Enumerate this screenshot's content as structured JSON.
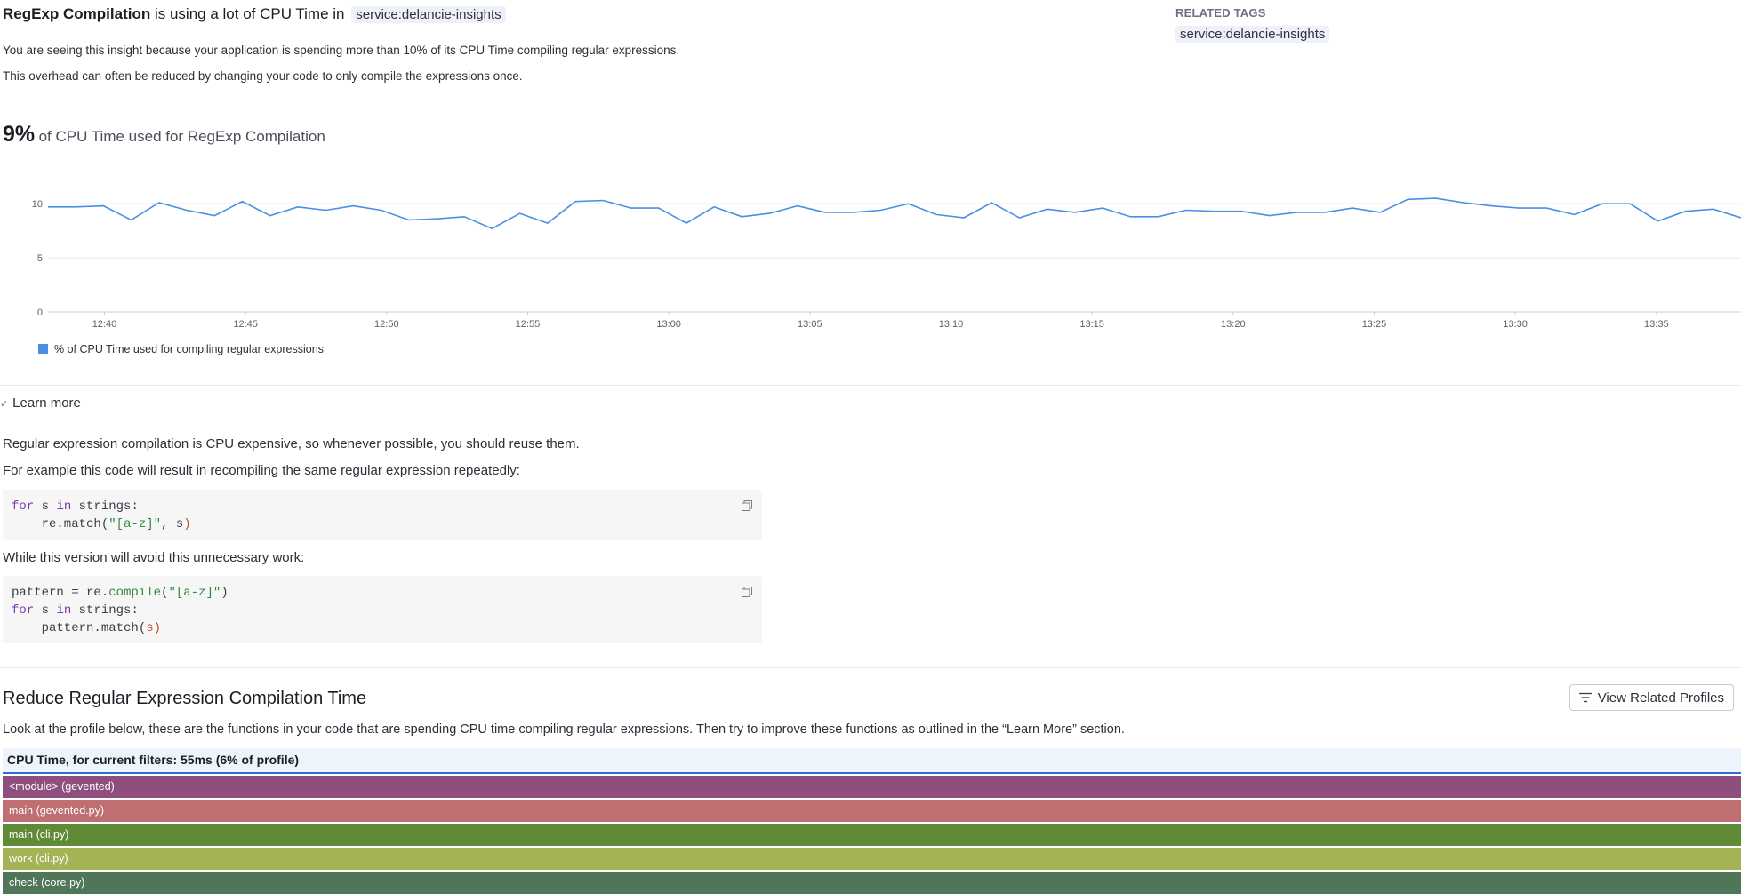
{
  "insight": {
    "title_bold": "RegExp Compilation",
    "title_rest": "is using a lot of CPU Time in",
    "service_tag": "service:delancie-insights",
    "desc_line1": "You are seeing this insight because your application is spending more than 10% of its CPU Time compiling regular expressions.",
    "desc_line2": "This overhead can often be reduced by changing your code to only compile the expressions once."
  },
  "related_tags": {
    "heading": "RELATED TAGS",
    "tag": "service:delancie-insights"
  },
  "metric": {
    "value": "9%",
    "label": "of CPU Time used for RegExp Compilation"
  },
  "chart_data": {
    "type": "line",
    "title": "",
    "xlabel": "",
    "ylabel": "",
    "ylim": [
      0,
      11
    ],
    "yticks": [
      "0",
      "5",
      "10"
    ],
    "xticks": [
      "12:40",
      "12:45",
      "12:50",
      "12:55",
      "13:00",
      "13:05",
      "13:10",
      "13:15",
      "13:20",
      "13:25",
      "13:30",
      "13:35"
    ],
    "x_start": "12:38",
    "x_end": "13:38",
    "grid": true,
    "legend_position": "bottom-left",
    "series": [
      {
        "name": "% of CPU Time used for compiling regular expressions",
        "color": "#4a90e2",
        "values": [
          9.7,
          9.7,
          9.8,
          8.5,
          10.1,
          9.4,
          8.9,
          10.2,
          8.9,
          9.7,
          9.4,
          9.8,
          9.4,
          8.5,
          8.6,
          8.8,
          7.7,
          9.1,
          8.2,
          10.2,
          10.3,
          9.6,
          9.6,
          8.2,
          9.7,
          8.8,
          9.1,
          9.8,
          9.2,
          9.2,
          9.4,
          10.0,
          9.0,
          8.7,
          10.1,
          8.7,
          9.5,
          9.2,
          9.6,
          8.8,
          8.8,
          9.4,
          9.3,
          9.3,
          8.9,
          9.2,
          9.2,
          9.6,
          9.2,
          10.4,
          10.5,
          10.1,
          9.8,
          9.6,
          9.6,
          9.0,
          10.0,
          10.0,
          8.4,
          9.3,
          9.5,
          8.7
        ]
      }
    ]
  },
  "learn_more": {
    "toggle_label": "Learn more",
    "para1": "Regular expression compilation is CPU expensive, so whenever possible, you should reuse them.",
    "para2": "For example this code will result in recompiling the same regular expression repeatedly:",
    "para3": "While this version will avoid this unnecessary work:",
    "code1": {
      "l1_kw": "for",
      "l1_a": " s ",
      "l1_kw2": "in",
      "l1_b": " strings:",
      "l2_a": "    re.match(",
      "l2_str": "\"[a-z]\"",
      "l2_b": ", s",
      "l2_par": ")"
    },
    "code2": {
      "l1_a": "pattern = re.",
      "l1_fn": "compile",
      "l1_b": "(",
      "l1_str": "\"[a-z]\"",
      "l1_par": ")",
      "l2_kw": "for",
      "l2_a": " s ",
      "l2_kw2": "in",
      "l2_b": " strings:",
      "l3_a": "    pattern.match(",
      "l3_par": "s)"
    }
  },
  "reduce": {
    "title": "Reduce Regular Expression Compilation Time",
    "desc": "Look at the profile below, these are the functions in your code that are spending CPU time compiling regular expressions. Then try to improve these functions as outlined in the “Learn More” section.",
    "button_label": "View Related Profiles",
    "flame_header": "CPU Time, for current filters: 55ms (6% of profile)",
    "frames": [
      {
        "label": "<module> (gevented)",
        "color": "#8f4f7e"
      },
      {
        "label": "main (gevented.py)",
        "color": "#bf6e71"
      },
      {
        "label": "main (cli.py)",
        "color": "#5f8b37"
      },
      {
        "label": "work (cli.py)",
        "color": "#a4b356"
      },
      {
        "label": "check (core.py)",
        "color": "#4f7658"
      }
    ]
  }
}
